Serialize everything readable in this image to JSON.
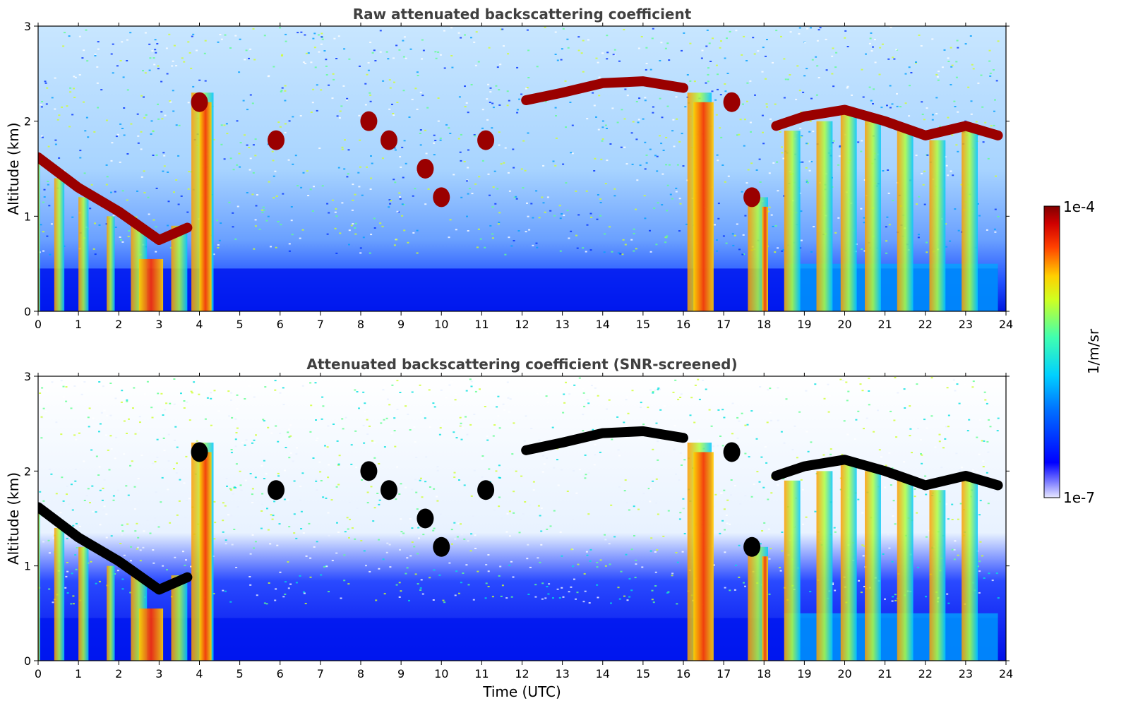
{
  "chart_data": [
    {
      "type": "heatmap",
      "title": "Raw attenuated backscattering coefficient",
      "xlabel": "",
      "ylabel": "Altitude (km)",
      "xlim": [
        0,
        24
      ],
      "ylim": [
        0,
        3
      ],
      "xticks": [
        "0",
        "1",
        "2",
        "3",
        "4",
        "5",
        "6",
        "7",
        "8",
        "9",
        "10",
        "11",
        "12",
        "13",
        "14",
        "15",
        "16",
        "17",
        "18",
        "19",
        "20",
        "21",
        "22",
        "23",
        "24"
      ],
      "yticks": [
        "0",
        "1",
        "2",
        "3"
      ],
      "screened": false,
      "cloud_layer": [
        {
          "t": 0.0,
          "alt": 1.62
        },
        {
          "t": 1.0,
          "alt": 1.3
        },
        {
          "t": 2.0,
          "alt": 1.05
        },
        {
          "t": 3.0,
          "alt": 0.75
        },
        {
          "t": 3.7,
          "alt": 0.88
        },
        {
          "t": 12.1,
          "alt": 2.22
        },
        {
          "t": 13.0,
          "alt": 2.3
        },
        {
          "t": 14.0,
          "alt": 2.4
        },
        {
          "t": 15.0,
          "alt": 2.42
        },
        {
          "t": 16.0,
          "alt": 2.35
        },
        {
          "t": 18.3,
          "alt": 1.95
        },
        {
          "t": 19.0,
          "alt": 2.05
        },
        {
          "t": 20.0,
          "alt": 2.12
        },
        {
          "t": 21.0,
          "alt": 2.0
        },
        {
          "t": 22.0,
          "alt": 1.85
        },
        {
          "t": 23.0,
          "alt": 1.95
        },
        {
          "t": 23.8,
          "alt": 1.85
        }
      ]
    },
    {
      "type": "heatmap",
      "title": "Attenuated backscattering coefficient (SNR-screened)",
      "xlabel": "Time (UTC)",
      "ylabel": "Altitude (km)",
      "xlim": [
        0,
        24
      ],
      "ylim": [
        0,
        3
      ],
      "xticks": [
        "0",
        "1",
        "2",
        "3",
        "4",
        "5",
        "6",
        "7",
        "8",
        "9",
        "10",
        "11",
        "12",
        "13",
        "14",
        "15",
        "16",
        "17",
        "18",
        "19",
        "20",
        "21",
        "22",
        "23",
        "24"
      ],
      "yticks": [
        "0",
        "1",
        "2",
        "3"
      ],
      "screened": true
    }
  ],
  "colorbar": {
    "label": "1/m/sr",
    "max_label": "1e-4",
    "min_label": "1e-7",
    "scale": "log",
    "colormap": [
      "#0000c8",
      "#0030ff",
      "#00a0ff",
      "#00e0e0",
      "#60ff90",
      "#d0ff30",
      "#ffe000",
      "#ff8000",
      "#ff2000",
      "#c00000",
      "#800000"
    ]
  },
  "colors": {
    "title": "#404040",
    "background": "#ffffff",
    "saturated": "#000000"
  }
}
